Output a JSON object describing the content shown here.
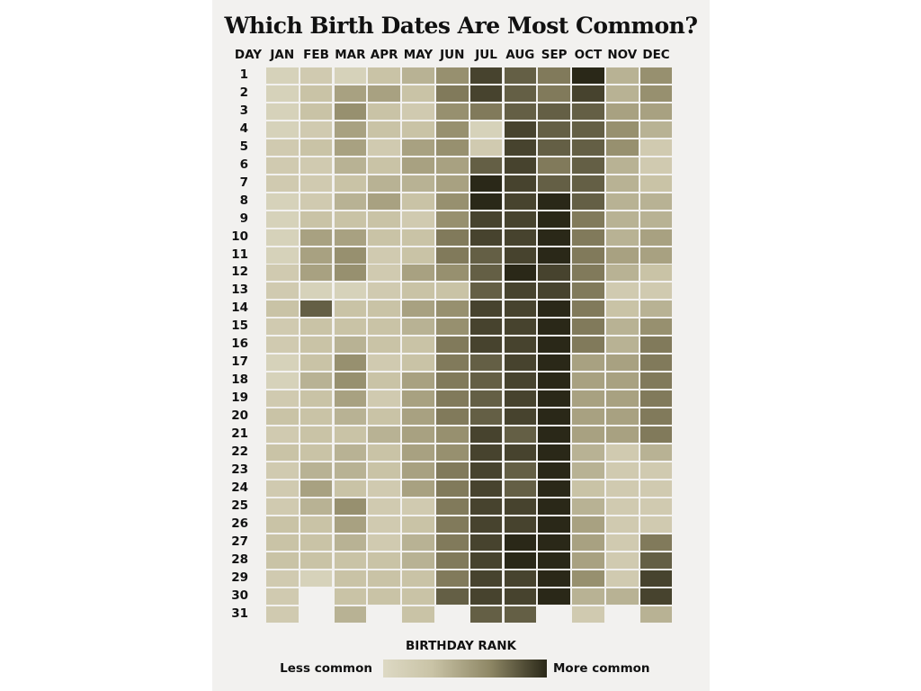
{
  "chart_data": {
    "type": "heatmap",
    "title": "Which Birth Dates Are Most Common?",
    "row_header": "DAY",
    "columns": [
      "JAN",
      "FEB",
      "MAR",
      "APR",
      "MAY",
      "JUN",
      "JUL",
      "AUG",
      "SEP",
      "OCT",
      "NOV",
      "DEC"
    ],
    "rows": [
      "1",
      "2",
      "3",
      "4",
      "5",
      "6",
      "7",
      "8",
      "9",
      "10",
      "11",
      "12",
      "13",
      "14",
      "15",
      "16",
      "17",
      "18",
      "19",
      "20",
      "21",
      "22",
      "23",
      "24",
      "25",
      "26",
      "27",
      "28",
      "29",
      "30",
      "31"
    ],
    "scale_min": 0,
    "scale_max": 10,
    "values": [
      [
        1,
        2,
        1,
        3,
        4,
        6,
        9,
        8,
        7,
        10,
        4,
        6
      ],
      [
        1,
        3,
        5,
        5,
        3,
        7,
        9,
        8,
        7,
        9,
        4,
        6
      ],
      [
        1,
        3,
        6,
        3,
        2,
        6,
        7,
        8,
        8,
        8,
        5,
        5
      ],
      [
        1,
        2,
        5,
        3,
        3,
        6,
        1,
        9,
        8,
        8,
        6,
        4
      ],
      [
        2,
        3,
        5,
        2,
        5,
        6,
        2,
        9,
        8,
        8,
        6,
        2
      ],
      [
        2,
        2,
        4,
        3,
        5,
        5,
        8,
        9,
        7,
        8,
        4,
        2
      ],
      [
        2,
        2,
        3,
        4,
        4,
        5,
        10,
        9,
        8,
        8,
        4,
        3
      ],
      [
        1,
        2,
        4,
        5,
        3,
        6,
        10,
        9,
        10,
        8,
        4,
        4
      ],
      [
        1,
        3,
        3,
        3,
        2,
        6,
        9,
        9,
        10,
        7,
        4,
        4
      ],
      [
        1,
        5,
        5,
        3,
        3,
        7,
        9,
        9,
        10,
        7,
        4,
        5
      ],
      [
        1,
        5,
        6,
        2,
        3,
        7,
        8,
        9,
        10,
        7,
        5,
        5
      ],
      [
        2,
        5,
        6,
        2,
        5,
        6,
        8,
        10,
        9,
        7,
        4,
        3
      ],
      [
        2,
        1,
        1,
        2,
        3,
        3,
        8,
        9,
        9,
        7,
        2,
        2
      ],
      [
        3,
        8,
        3,
        3,
        5,
        6,
        9,
        9,
        10,
        7,
        3,
        4
      ],
      [
        2,
        3,
        3,
        3,
        4,
        6,
        9,
        9,
        10,
        7,
        4,
        6
      ],
      [
        2,
        3,
        4,
        3,
        3,
        7,
        9,
        9,
        10,
        7,
        4,
        7
      ],
      [
        1,
        3,
        6,
        2,
        3,
        7,
        8,
        9,
        10,
        5,
        5,
        7
      ],
      [
        1,
        4,
        6,
        3,
        5,
        7,
        8,
        9,
        10,
        5,
        5,
        7
      ],
      [
        2,
        3,
        5,
        2,
        5,
        7,
        8,
        9,
        10,
        5,
        5,
        7
      ],
      [
        3,
        3,
        4,
        3,
        5,
        7,
        8,
        9,
        10,
        5,
        5,
        7
      ],
      [
        2,
        3,
        3,
        4,
        5,
        6,
        9,
        8,
        10,
        5,
        5,
        7
      ],
      [
        3,
        3,
        4,
        3,
        5,
        6,
        9,
        9,
        10,
        4,
        2,
        4
      ],
      [
        2,
        4,
        4,
        3,
        5,
        7,
        9,
        8,
        10,
        4,
        2,
        2
      ],
      [
        2,
        5,
        3,
        2,
        5,
        7,
        9,
        8,
        10,
        3,
        2,
        2
      ],
      [
        2,
        4,
        6,
        2,
        2,
        7,
        9,
        9,
        10,
        4,
        2,
        2
      ],
      [
        3,
        3,
        5,
        2,
        3,
        7,
        9,
        9,
        10,
        5,
        2,
        2
      ],
      [
        3,
        3,
        4,
        2,
        4,
        7,
        9,
        10,
        10,
        5,
        2,
        7
      ],
      [
        3,
        3,
        3,
        3,
        4,
        7,
        9,
        10,
        10,
        5,
        2,
        8
      ],
      [
        2,
        1,
        3,
        3,
        3,
        7,
        9,
        9,
        10,
        6,
        2,
        9
      ],
      [
        2,
        null,
        3,
        3,
        3,
        8,
        9,
        9,
        10,
        4,
        4,
        9
      ],
      [
        2,
        null,
        4,
        null,
        3,
        null,
        8,
        8,
        null,
        2,
        null,
        4
      ]
    ],
    "legend": {
      "title": "BIRTHDAY RANK",
      "min_label": "Less common",
      "max_label": "More common",
      "colors": [
        "#ddd9c4",
        "#c9c3a6",
        "#8f8866",
        "#2a2818"
      ]
    }
  }
}
